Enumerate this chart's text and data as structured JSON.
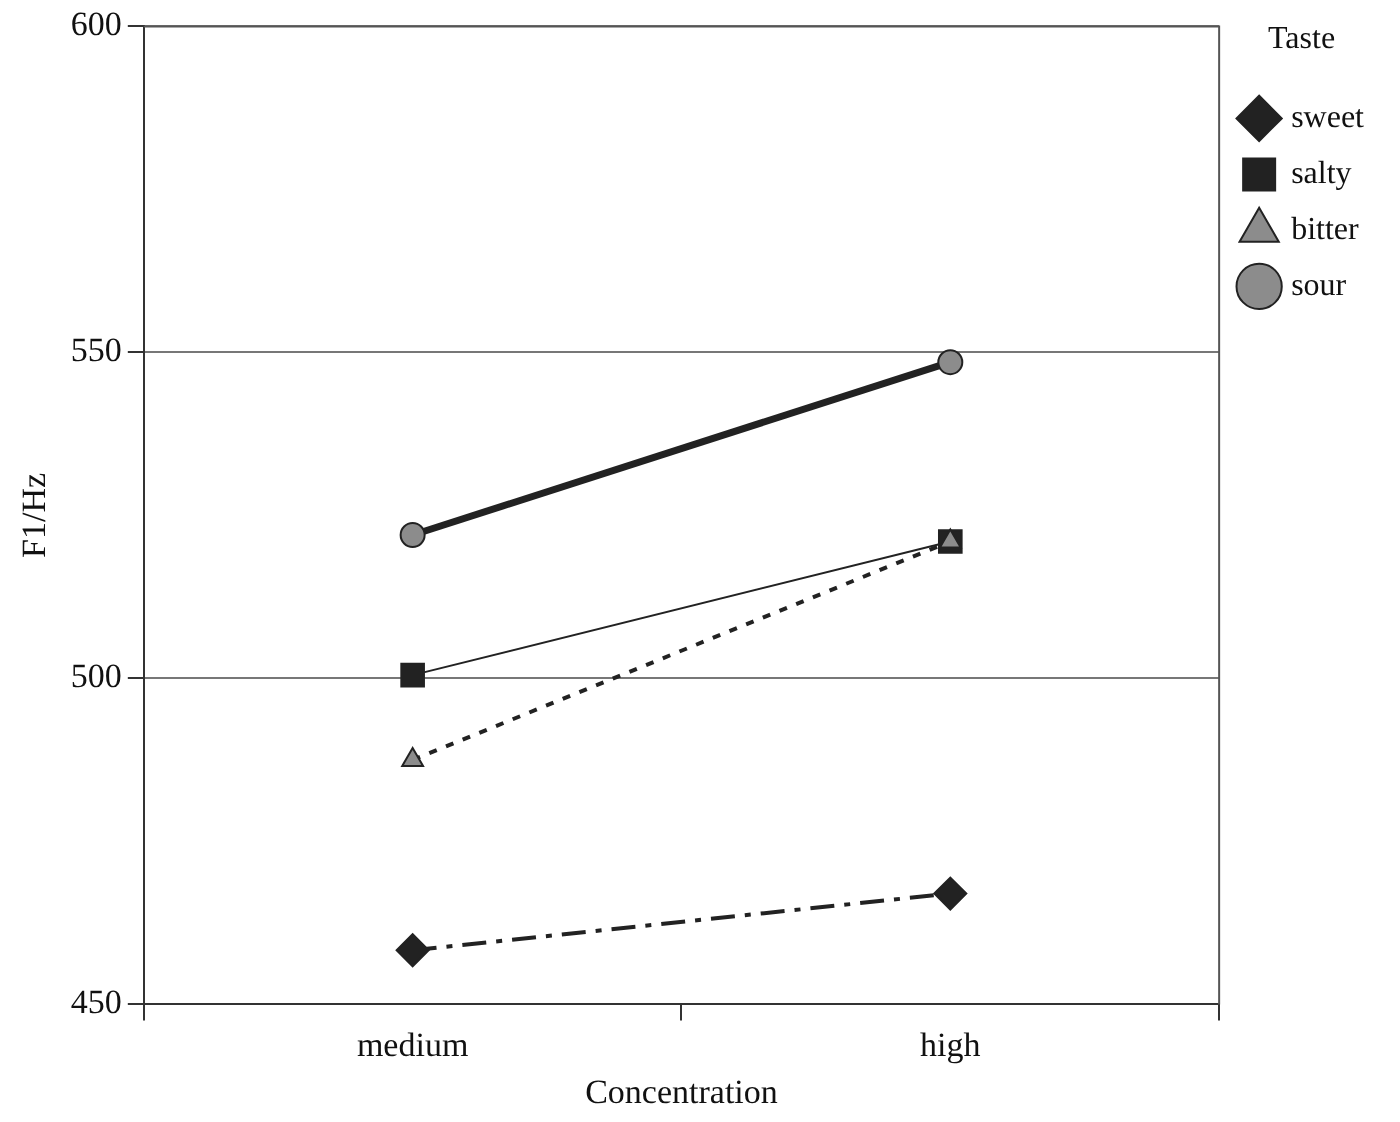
{
  "chart_data": {
    "type": "line",
    "xlabel": "Concentration",
    "ylabel": "F1/Hz",
    "legend_title": "Taste",
    "categories": [
      "medium",
      "high"
    ],
    "series": [
      {
        "name": "sweet",
        "color": "#222222",
        "values": [
          458.3,
          467
        ],
        "marker": "diamond",
        "line_style": "dashed"
      },
      {
        "name": "salty",
        "color": "#222222",
        "values": [
          500.5,
          521
        ],
        "marker": "square",
        "line_style": "solid"
      },
      {
        "name": "bitter",
        "color": "#222222",
        "values": [
          487.5,
          521
        ],
        "marker": "triangle",
        "line_style": "dotted"
      },
      {
        "name": "sour",
        "color": "#222222",
        "values": [
          522,
          548.5
        ],
        "marker": "circle",
        "line_style": "solid"
      }
    ],
    "ylim": [
      450,
      600
    ],
    "yticks": [
      450,
      500,
      550,
      600
    ],
    "grid": "y",
    "legend": "top right"
  }
}
